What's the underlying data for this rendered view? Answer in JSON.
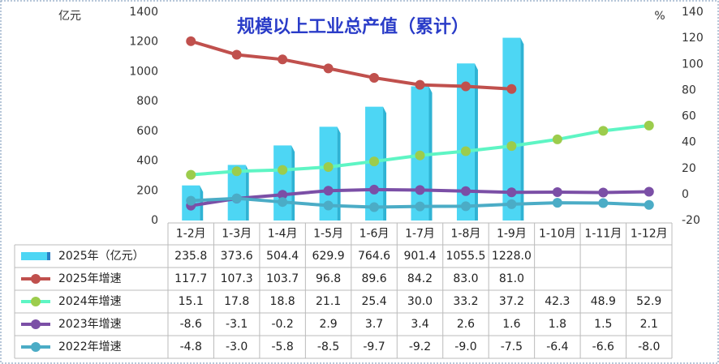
{
  "chart_data": {
    "type": "bar-line-table",
    "title": "规模以上工业总产值（累计）",
    "y_label": "亿元",
    "y2_label": "%",
    "categories": [
      "1-2月",
      "1-3月",
      "1-4月",
      "1-5月",
      "1-6月",
      "1-7月",
      "1-8月",
      "1-9月",
      "1-10月",
      "1-11月",
      "1-12月"
    ],
    "ylim": [
      0,
      1400
    ],
    "yticks": [
      0,
      200,
      400,
      600,
      800,
      1000,
      1200,
      1400
    ],
    "y2lim": [
      -20,
      140
    ],
    "y2ticks": [
      -20,
      0,
      20,
      40,
      60,
      80,
      100,
      120,
      140
    ],
    "grid": false,
    "series": [
      {
        "name": "2025年（亿元）",
        "kind": "bar",
        "color": "#4dd6f4",
        "values": [
          235.8,
          373.6,
          504.4,
          629.9,
          764.6,
          901.4,
          1055.5,
          1228.0,
          null,
          null,
          null
        ],
        "value_labels": [
          "235.8",
          "373.6",
          "504.4",
          "629.9",
          "764.6",
          "901.4",
          "1055.5",
          "1228.0",
          null,
          null,
          null
        ]
      },
      {
        "name": "2025年增速",
        "kind": "line",
        "axis": "y2",
        "color": "#c0504d",
        "values": [
          117.7,
          107.3,
          103.7,
          96.8,
          89.6,
          84.2,
          83.0,
          81.0,
          null,
          null,
          null
        ],
        "value_labels": [
          "117.7",
          "107.3",
          "103.7",
          "96.8",
          "89.6",
          "84.2",
          "83.0",
          "81.0",
          null,
          null,
          null
        ]
      },
      {
        "name": "2024年增速",
        "kind": "line",
        "axis": "y2",
        "color": "#5ef5c4",
        "marker_color": "#9ccc4c",
        "values": [
          15.1,
          17.8,
          18.8,
          21.1,
          25.4,
          30.0,
          33.2,
          37.2,
          42.3,
          48.9,
          52.9
        ],
        "value_labels": [
          "15.1",
          "17.8",
          "18.8",
          "21.1",
          "25.4",
          "30.0",
          "33.2",
          "37.2",
          "42.3",
          "48.9",
          "52.9"
        ]
      },
      {
        "name": "2023年增速",
        "kind": "line",
        "axis": "y2",
        "color": "#7b4fa6",
        "values": [
          -8.6,
          -3.1,
          -0.2,
          2.9,
          3.7,
          3.4,
          2.6,
          1.6,
          1.8,
          1.5,
          2.1
        ],
        "value_labels": [
          "-8.6",
          "-3.1",
          "-0.2",
          "2.9",
          "3.7",
          "3.4",
          "2.6",
          "1.6",
          "1.8",
          "1.5",
          "2.1"
        ]
      },
      {
        "name": "2022年增速",
        "kind": "line",
        "axis": "y2",
        "color": "#4bacc6",
        "values": [
          -4.8,
          -3.0,
          -5.8,
          -8.5,
          -9.7,
          -9.2,
          -9.0,
          -7.5,
          -6.4,
          -6.6,
          -8.0
        ],
        "value_labels": [
          "-4.8",
          "-3.0",
          "-5.8",
          "-8.5",
          "-9.7",
          "-9.2",
          "-9.0",
          "-7.5",
          "-6.4",
          "-6.6",
          "-8.0"
        ]
      }
    ]
  }
}
